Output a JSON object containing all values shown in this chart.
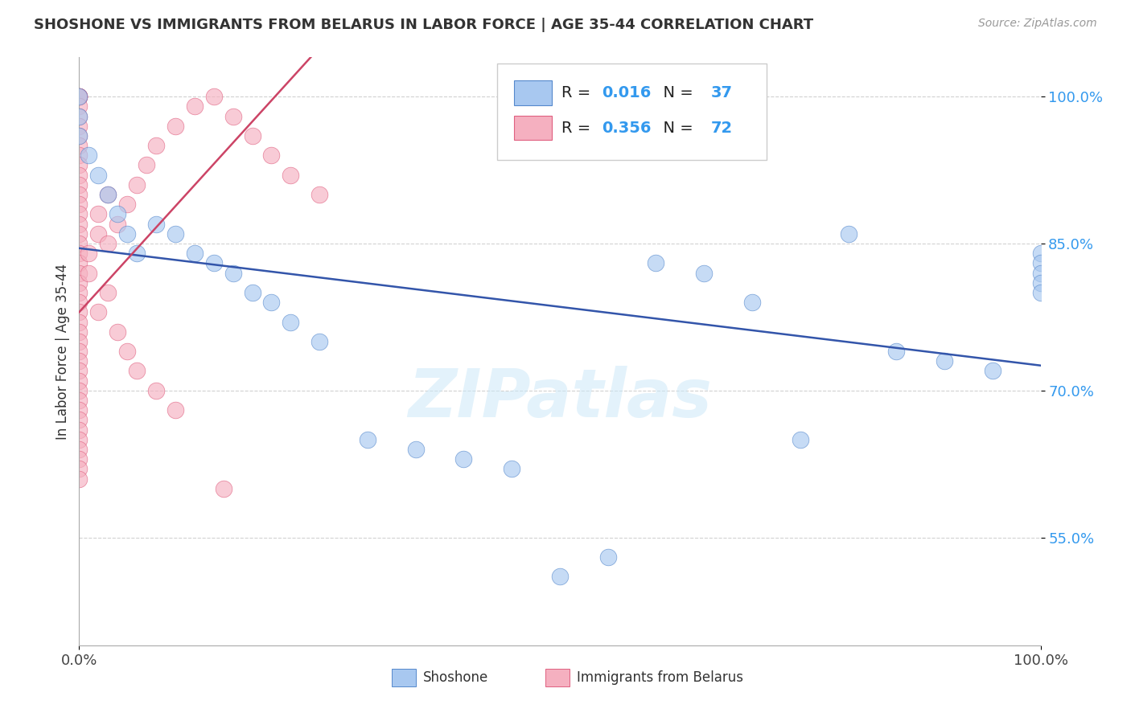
{
  "title": "SHOSHONE VS IMMIGRANTS FROM BELARUS IN LABOR FORCE | AGE 35-44 CORRELATION CHART",
  "source_text": "Source: ZipAtlas.com",
  "ylabel": "In Labor Force | Age 35-44",
  "watermark": "ZIPatlas",
  "legend_shoshone_R": 0.016,
  "legend_shoshone_N": 37,
  "legend_belarus_R": 0.356,
  "legend_belarus_N": 72,
  "shoshone_color": "#a8c8f0",
  "shoshone_edge": "#5588cc",
  "belarus_color": "#f5b0c0",
  "belarus_edge": "#e06080",
  "shoshone_line_color": "#3355aa",
  "belarus_line_color": "#cc4466",
  "background_color": "#ffffff",
  "grid_color": "#cccccc",
  "ytick_color": "#3399ee",
  "xlim": [
    0.0,
    1.0
  ],
  "ylim": [
    0.44,
    1.04
  ],
  "shoshone_x": [
    0.0,
    0.0,
    0.0,
    0.01,
    0.02,
    0.03,
    0.04,
    0.05,
    0.06,
    0.08,
    0.1,
    0.12,
    0.14,
    0.16,
    0.18,
    0.2,
    0.22,
    0.25,
    0.3,
    0.35,
    0.4,
    0.45,
    0.5,
    0.55,
    0.6,
    0.65,
    0.7,
    0.75,
    0.8,
    0.85,
    0.9,
    0.95,
    1.0,
    1.0,
    1.0,
    1.0,
    1.0
  ],
  "shoshone_y": [
    1.0,
    0.98,
    0.96,
    0.94,
    0.92,
    0.9,
    0.88,
    0.86,
    0.84,
    0.87,
    0.86,
    0.84,
    0.83,
    0.82,
    0.8,
    0.79,
    0.77,
    0.75,
    0.65,
    0.64,
    0.63,
    0.62,
    0.51,
    0.53,
    0.83,
    0.82,
    0.79,
    0.65,
    0.86,
    0.74,
    0.73,
    0.72,
    0.84,
    0.83,
    0.82,
    0.81,
    0.8
  ],
  "belarus_x": [
    0.0,
    0.0,
    0.0,
    0.0,
    0.0,
    0.0,
    0.0,
    0.0,
    0.0,
    0.0,
    0.0,
    0.0,
    0.0,
    0.0,
    0.0,
    0.0,
    0.0,
    0.0,
    0.0,
    0.0,
    0.0,
    0.0,
    0.0,
    0.0,
    0.0,
    0.0,
    0.0,
    0.0,
    0.0,
    0.0,
    0.0,
    0.0,
    0.0,
    0.0,
    0.0,
    0.0,
    0.0,
    0.0,
    0.0,
    0.0,
    0.0,
    0.0,
    0.0,
    0.0,
    0.0,
    0.01,
    0.01,
    0.02,
    0.02,
    0.03,
    0.03,
    0.04,
    0.05,
    0.06,
    0.07,
    0.08,
    0.1,
    0.12,
    0.14,
    0.16,
    0.18,
    0.2,
    0.22,
    0.25,
    0.02,
    0.03,
    0.04,
    0.05,
    0.06,
    0.08,
    0.1,
    0.15
  ],
  "belarus_y": [
    1.0,
    1.0,
    1.0,
    1.0,
    1.0,
    1.0,
    0.99,
    0.98,
    0.97,
    0.96,
    0.95,
    0.94,
    0.93,
    0.92,
    0.91,
    0.9,
    0.89,
    0.88,
    0.87,
    0.86,
    0.85,
    0.84,
    0.83,
    0.82,
    0.81,
    0.8,
    0.79,
    0.78,
    0.77,
    0.76,
    0.75,
    0.74,
    0.73,
    0.72,
    0.71,
    0.7,
    0.69,
    0.68,
    0.67,
    0.66,
    0.65,
    0.64,
    0.63,
    0.62,
    0.61,
    0.82,
    0.84,
    0.86,
    0.88,
    0.9,
    0.85,
    0.87,
    0.89,
    0.91,
    0.93,
    0.95,
    0.97,
    0.99,
    1.0,
    0.98,
    0.96,
    0.94,
    0.92,
    0.9,
    0.78,
    0.8,
    0.76,
    0.74,
    0.72,
    0.7,
    0.68,
    0.6
  ]
}
